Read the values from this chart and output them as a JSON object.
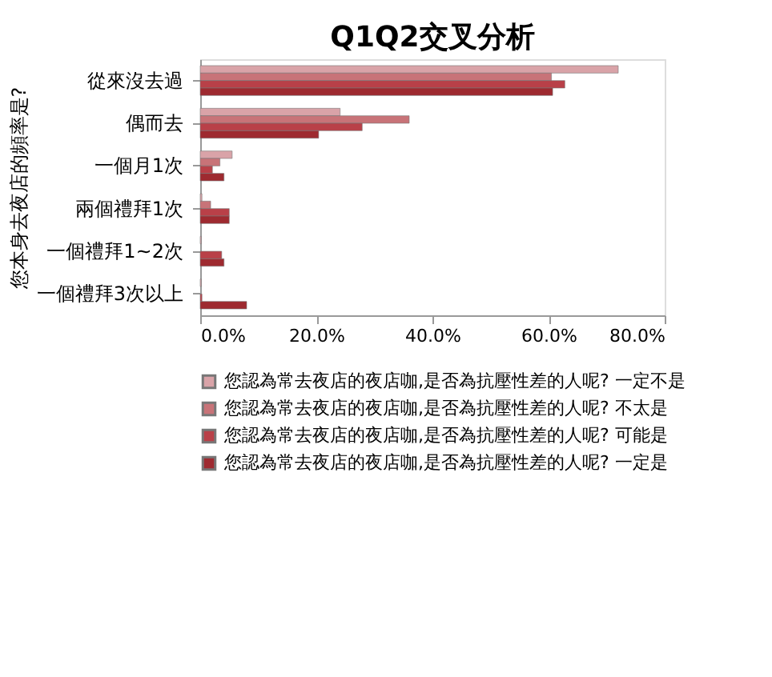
{
  "chart_data": {
    "type": "bar",
    "orientation": "horizontal",
    "title": "Q1Q2交叉分析",
    "ylabel": "您本身去夜店的頻率是?",
    "categories": [
      "從來沒去過",
      "偶而去",
      "一個月1次",
      "兩個禮拜1次",
      "一個禮拜1~2次",
      "一個禮拜3次以上"
    ],
    "series": [
      {
        "name": "您認為常去夜店的夜店咖,是否為抗壓性差的人呢? 一定不是",
        "color": "#d9a3a8",
        "values": [
          72.0,
          24.1,
          5.5,
          0.3,
          0.2,
          0.2
        ]
      },
      {
        "name": "您認為常去夜店的夜店咖,是否為抗壓性差的人呢? 不太是",
        "color": "#c87378",
        "values": [
          60.5,
          36.0,
          3.4,
          1.8,
          null,
          null
        ]
      },
      {
        "name": "您認為常去夜店的夜店咖,是否為抗壓性差的人呢? 可能是",
        "color": "#b94048",
        "values": [
          62.8,
          27.9,
          2.1,
          5.0,
          3.7,
          0.3
        ]
      },
      {
        "name": "您認為常去夜店的夜店咖,是否為抗壓性差的人呢? 一定是",
        "color": "#9e2a30",
        "values": [
          60.7,
          20.4,
          4.1,
          5.0,
          4.1,
          8.0
        ]
      }
    ],
    "xlim": [
      0,
      80
    ],
    "xticks": [
      {
        "value": 0,
        "label": "0.0%"
      },
      {
        "value": 20,
        "label": "20.0%"
      },
      {
        "value": 40,
        "label": "40.0%"
      },
      {
        "value": 60,
        "label": "60.0%"
      },
      {
        "value": 80,
        "label": "80.0%"
      }
    ],
    "grid": false,
    "legend": "bottom"
  }
}
